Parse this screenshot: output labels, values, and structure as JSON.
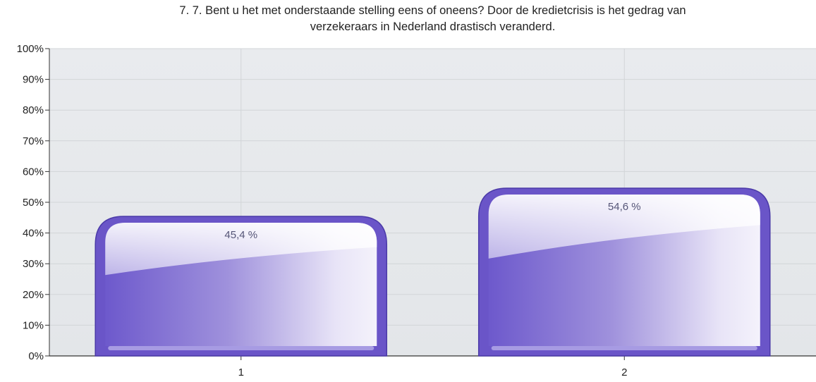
{
  "chart_data": {
    "type": "bar",
    "title_lines": [
      "7. 7. Bent u het met onderstaande stelling eens of oneens? Door de kredietcrisis is het gedrag van",
      "verzekeraars in Nederland drastisch veranderd."
    ],
    "categories": [
      "1",
      "2"
    ],
    "values": [
      45.4,
      54.6
    ],
    "value_labels": [
      "45,4 %",
      "54,6 %"
    ],
    "y_ticks": [
      "0%",
      "10%",
      "20%",
      "30%",
      "40%",
      "50%",
      "60%",
      "70%",
      "80%",
      "90%",
      "100%"
    ],
    "ylim": [
      0,
      100
    ],
    "xlabel": "",
    "ylabel": "",
    "grid": true,
    "colors": {
      "bar": "#6a55c8",
      "bar_border": "#4b3aa8",
      "plot_background": "#e6e9ec",
      "grid": "#d2d5d8",
      "axis": "#333333"
    }
  }
}
